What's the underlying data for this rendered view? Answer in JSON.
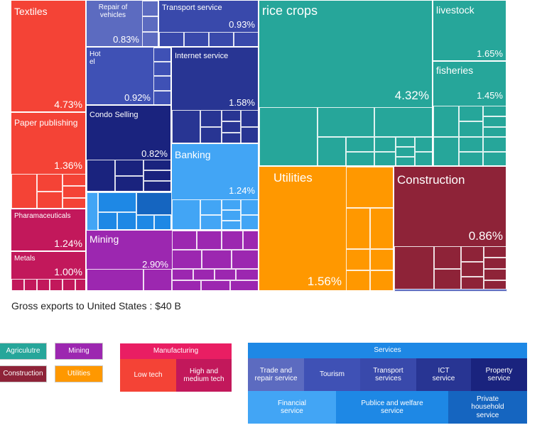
{
  "chart_data": {
    "type": "treemap",
    "caption": "Gross exports to United States : $40 B",
    "sectors": [
      {
        "name": "Textiles",
        "value": "4.73%",
        "color": "#f44336"
      },
      {
        "name": "Paper publishing",
        "value": "1.36%",
        "color": "#f44336"
      },
      {
        "name": "Pharamaceuticals",
        "value": "1.24%",
        "color": "#c2185b"
      },
      {
        "name": "Metals",
        "value": "1.00%",
        "color": "#c2185b"
      },
      {
        "name": "Repair of vehicles",
        "value": "0.83%",
        "color": "#5c6bc0"
      },
      {
        "name": "Transport service",
        "value": "0.93%",
        "color": "#3949ab"
      },
      {
        "name": "Hot el",
        "value": "0.92%",
        "color": "#3f51b5"
      },
      {
        "name": "Internet service",
        "value": "1.58%",
        "color": "#283593"
      },
      {
        "name": "Condo Selling",
        "value": "0.82%",
        "color": "#1a237e"
      },
      {
        "name": "Banking",
        "value": "1.24%",
        "color": "#42a5f5"
      },
      {
        "name": "Mining",
        "value": "2.90%",
        "color": "#9c27b0"
      },
      {
        "name": "rice crops",
        "value": "4.32%",
        "color": "#26a69a"
      },
      {
        "name": "livestock",
        "value": "1.65%",
        "color": "#26a69a"
      },
      {
        "name": "fisheries",
        "value": "1.45%",
        "color": "#26a69a"
      },
      {
        "name": "Utilities",
        "value": "1.56%",
        "color": "#ff9800"
      },
      {
        "name": "Construction",
        "value": "0.86%",
        "color": "#8e2338"
      }
    ]
  },
  "legend": {
    "agriculture": "Agriculutre",
    "mining": "Mining",
    "construction": "Construction",
    "utilities": "Utilities",
    "manufacturing": "Manufacturing",
    "low_tech": "Low tech",
    "high_tech": "High and medium tech",
    "services": "Services",
    "services_items": [
      "Trade and repair service",
      "Tourism",
      "Transport services",
      "ICT service",
      "Property service",
      "Financial service",
      "Publice and welfare service",
      "Private household service"
    ]
  },
  "colors": {
    "agriculture": "#26a69a",
    "mining": "#9c27b0",
    "construction": "#8e2338",
    "utilities": "#ff9800",
    "manufacturing": "#e91e63",
    "low_tech": "#f44336",
    "high_tech": "#c2185b",
    "services": "#1e88e5"
  }
}
